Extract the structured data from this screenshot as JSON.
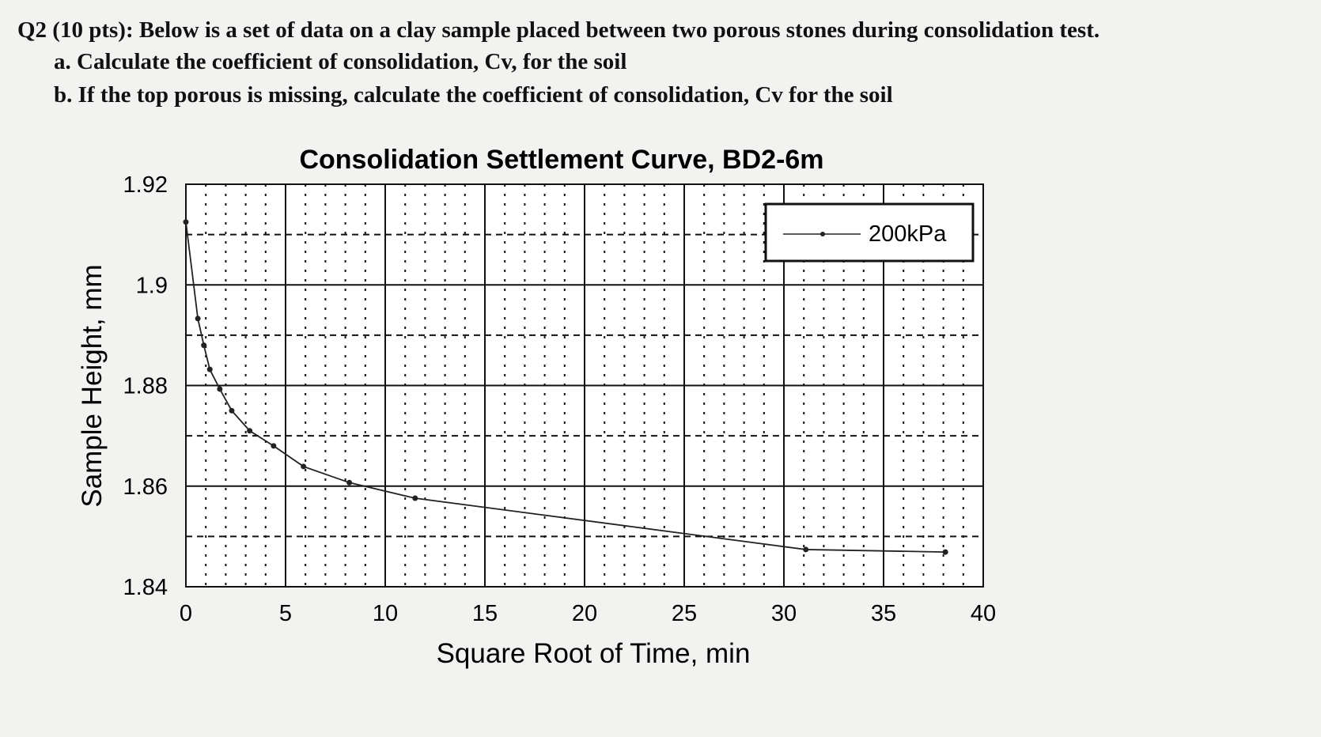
{
  "question": {
    "title": "Q2 (10 pts): Below is a set of data on a clay sample placed between two porous stones during consolidation test.",
    "part_a": "a. Calculate the coefficient of consolidation, Cv, for the soil",
    "part_b": "b. If the top porous is missing, calculate the coefficient of consolidation, Cv for the soil"
  },
  "chart_data": {
    "type": "line",
    "title": "Consolidation Settlement Curve, BD2-6m",
    "xlabel": "Square Root of Time, min",
    "ylabel": "Sample Height, mm",
    "xlim": [
      0,
      40
    ],
    "ylim": [
      1.84,
      1.92
    ],
    "x_ticks": [
      "0",
      "5",
      "10",
      "15",
      "20",
      "25",
      "30",
      "35",
      "40"
    ],
    "y_ticks": [
      "1.84",
      "1.86",
      "1.88",
      "1.9",
      "1.92"
    ],
    "grid": true,
    "legend_position": "top-right",
    "series": [
      {
        "name": "200kPa",
        "color": "#222222",
        "x": [
          0,
          0.6,
          0.9,
          1.2,
          1.7,
          2.3,
          3.2,
          4.4,
          5.9,
          8.2,
          11.5,
          31.1,
          38.1
        ],
        "y": [
          1.9125,
          1.8933,
          1.888,
          1.8832,
          1.8793,
          1.875,
          1.871,
          1.868,
          1.8639,
          1.8607,
          1.8576,
          1.8474,
          1.8469
        ]
      }
    ]
  }
}
